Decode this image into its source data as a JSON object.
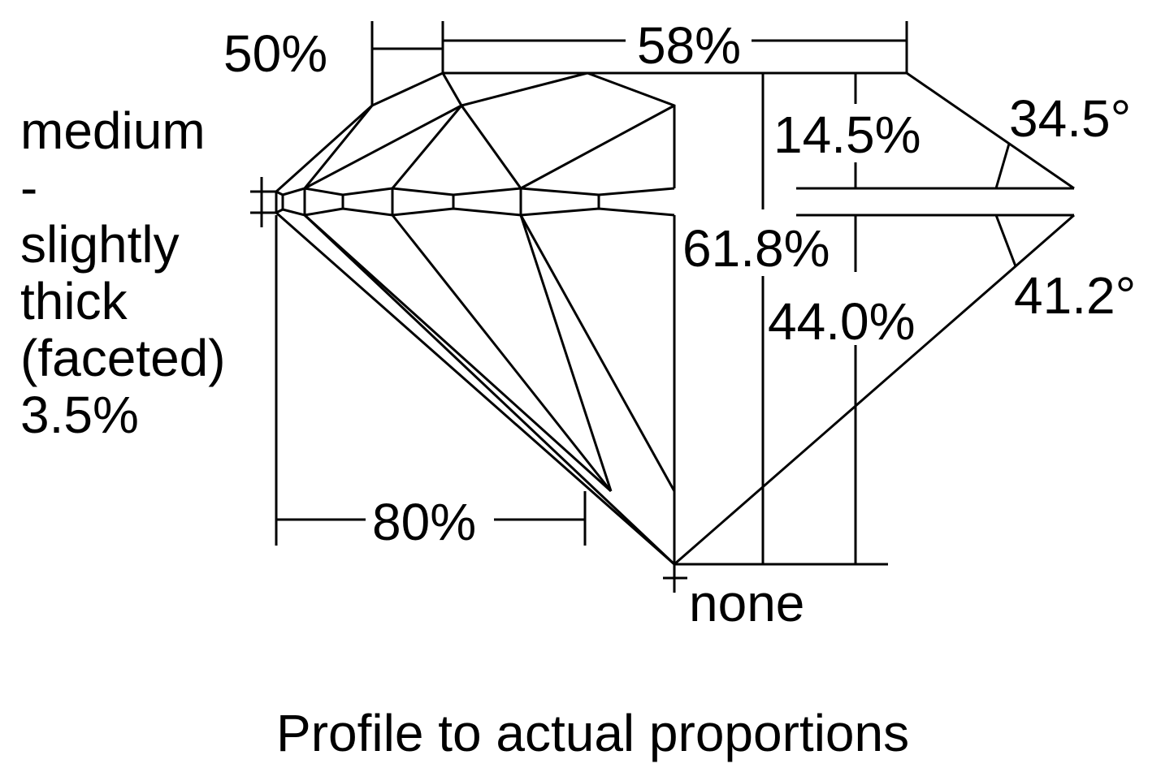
{
  "diagram": {
    "labels": {
      "table_percent": "58%",
      "star_length": "50%",
      "girdle_lines": [
        "medium",
        "-",
        "slightly",
        "thick",
        "(faceted)",
        "3.5%"
      ],
      "crown_height": "14.5%",
      "crown_angle": "34.5°",
      "total_depth": "61.8%",
      "pavilion_angle": "41.2°",
      "pavilion_depth": "44.0%",
      "lower_half_length": "80%",
      "culet": "none"
    },
    "caption": "Profile to actual proportions",
    "line_color": "#000000",
    "background": "#ffffff"
  }
}
